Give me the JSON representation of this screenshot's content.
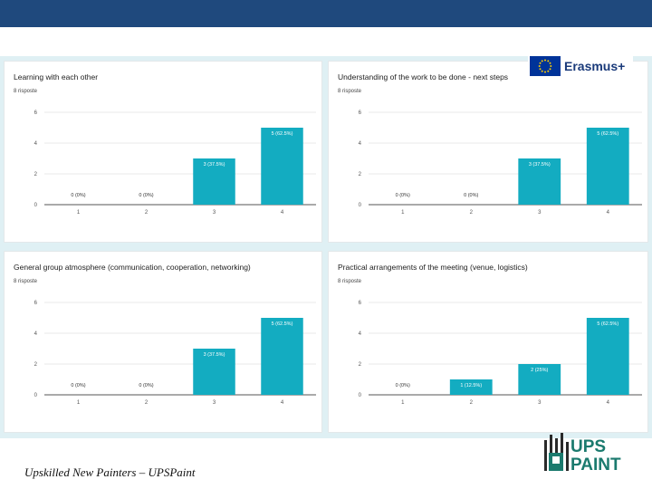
{
  "footer": {
    "caption": "Upskilled New Painters – UPSPaint"
  },
  "logos": {
    "erasmus_text": "Erasmus+",
    "ups_line1": "UPS",
    "ups_line2": "PAINT"
  },
  "colors": {
    "header": "#1f497d",
    "bar": "#13acc1",
    "background": "#dff0f4",
    "ups_green": "#1b7a6e"
  },
  "chart_data": [
    {
      "type": "bar",
      "title": "Learning with each other",
      "subtitle": "8 risposte",
      "categories": [
        "1",
        "2",
        "3",
        "4"
      ],
      "values": [
        0,
        0,
        3,
        5
      ],
      "data_labels": [
        "0 (0%)",
        "0 (0%)",
        "3 (37.5%)",
        "5 (62.5%)"
      ],
      "y_ticks": [
        "0",
        "2",
        "4",
        "6"
      ],
      "ylim": [
        0,
        6
      ],
      "grid": true
    },
    {
      "type": "bar",
      "title": "Understanding of the work to be done - next steps",
      "subtitle": "8 risposte",
      "categories": [
        "1",
        "2",
        "3",
        "4"
      ],
      "values": [
        0,
        0,
        3,
        5
      ],
      "data_labels": [
        "0 (0%)",
        "0 (0%)",
        "3 (37.5%)",
        "5 (62.5%)"
      ],
      "y_ticks": [
        "0",
        "2",
        "4",
        "6"
      ],
      "ylim": [
        0,
        6
      ],
      "grid": true
    },
    {
      "type": "bar",
      "title": "General group atmosphere (communication, cooperation, networking)",
      "subtitle": "8 risposte",
      "categories": [
        "1",
        "2",
        "3",
        "4"
      ],
      "values": [
        0,
        0,
        3,
        5
      ],
      "data_labels": [
        "0 (0%)",
        "0 (0%)",
        "3 (37.5%)",
        "5 (62.5%)"
      ],
      "y_ticks": [
        "0",
        "2",
        "4",
        "6"
      ],
      "ylim": [
        0,
        6
      ],
      "grid": true
    },
    {
      "type": "bar",
      "title": "Practical arrangements of the meeting (venue, logistics)",
      "subtitle": "8 risposte",
      "categories": [
        "1",
        "2",
        "3",
        "4"
      ],
      "values": [
        0,
        1,
        2,
        5
      ],
      "data_labels": [
        "0 (0%)",
        "1 (12.5%)",
        "2 (25%)",
        "5 (62.5%)"
      ],
      "y_ticks": [
        "0",
        "2",
        "4",
        "6"
      ],
      "ylim": [
        0,
        6
      ],
      "grid": true
    }
  ]
}
